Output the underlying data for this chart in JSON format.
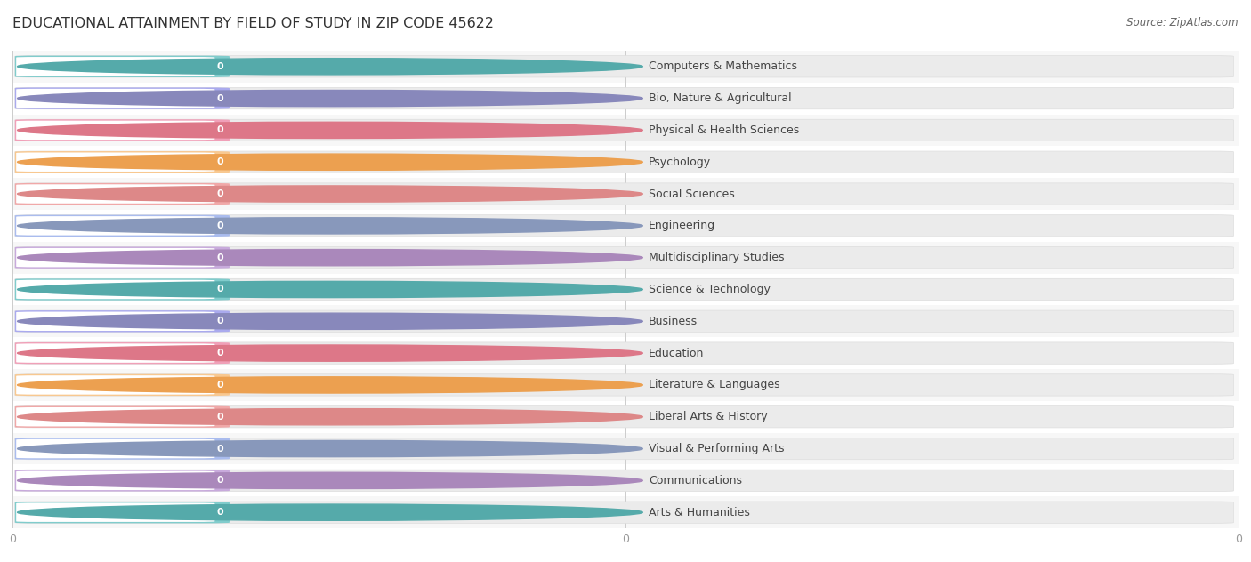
{
  "title": "EDUCATIONAL ATTAINMENT BY FIELD OF STUDY IN ZIP CODE 45622",
  "source": "Source: ZipAtlas.com",
  "categories": [
    "Computers & Mathematics",
    "Bio, Nature & Agricultural",
    "Physical & Health Sciences",
    "Psychology",
    "Social Sciences",
    "Engineering",
    "Multidisciplinary Studies",
    "Science & Technology",
    "Business",
    "Education",
    "Literature & Languages",
    "Liberal Arts & History",
    "Visual & Performing Arts",
    "Communications",
    "Arts & Humanities"
  ],
  "values": [
    0,
    0,
    0,
    0,
    0,
    0,
    0,
    0,
    0,
    0,
    0,
    0,
    0,
    0,
    0
  ],
  "bar_colors": [
    "#80CCCC",
    "#AAAAEE",
    "#F0A0B8",
    "#F8C890",
    "#F0A8A8",
    "#AABCEE",
    "#C8AADC",
    "#80CCCC",
    "#AAAAEE",
    "#F0A0B8",
    "#F8C890",
    "#F0A8A8",
    "#AABCEE",
    "#C8AADC",
    "#80CCCC"
  ],
  "icon_colors": [
    "#55AAAA",
    "#8888BB",
    "#DD7788",
    "#ECA050",
    "#DD8888",
    "#8898BB",
    "#AA88BB",
    "#55AAAA",
    "#8888BB",
    "#DD7788",
    "#ECA050",
    "#DD8888",
    "#8898BB",
    "#AA88BB",
    "#55AAAA"
  ],
  "background_color": "#ffffff",
  "row_colors": [
    "#f7f7f7",
    "#ffffff"
  ],
  "bar_bg_color": "#ebebeb",
  "title_fontsize": 11.5,
  "label_fontsize": 9,
  "value_fontsize": 8,
  "figsize": [
    14.06,
    6.32
  ]
}
